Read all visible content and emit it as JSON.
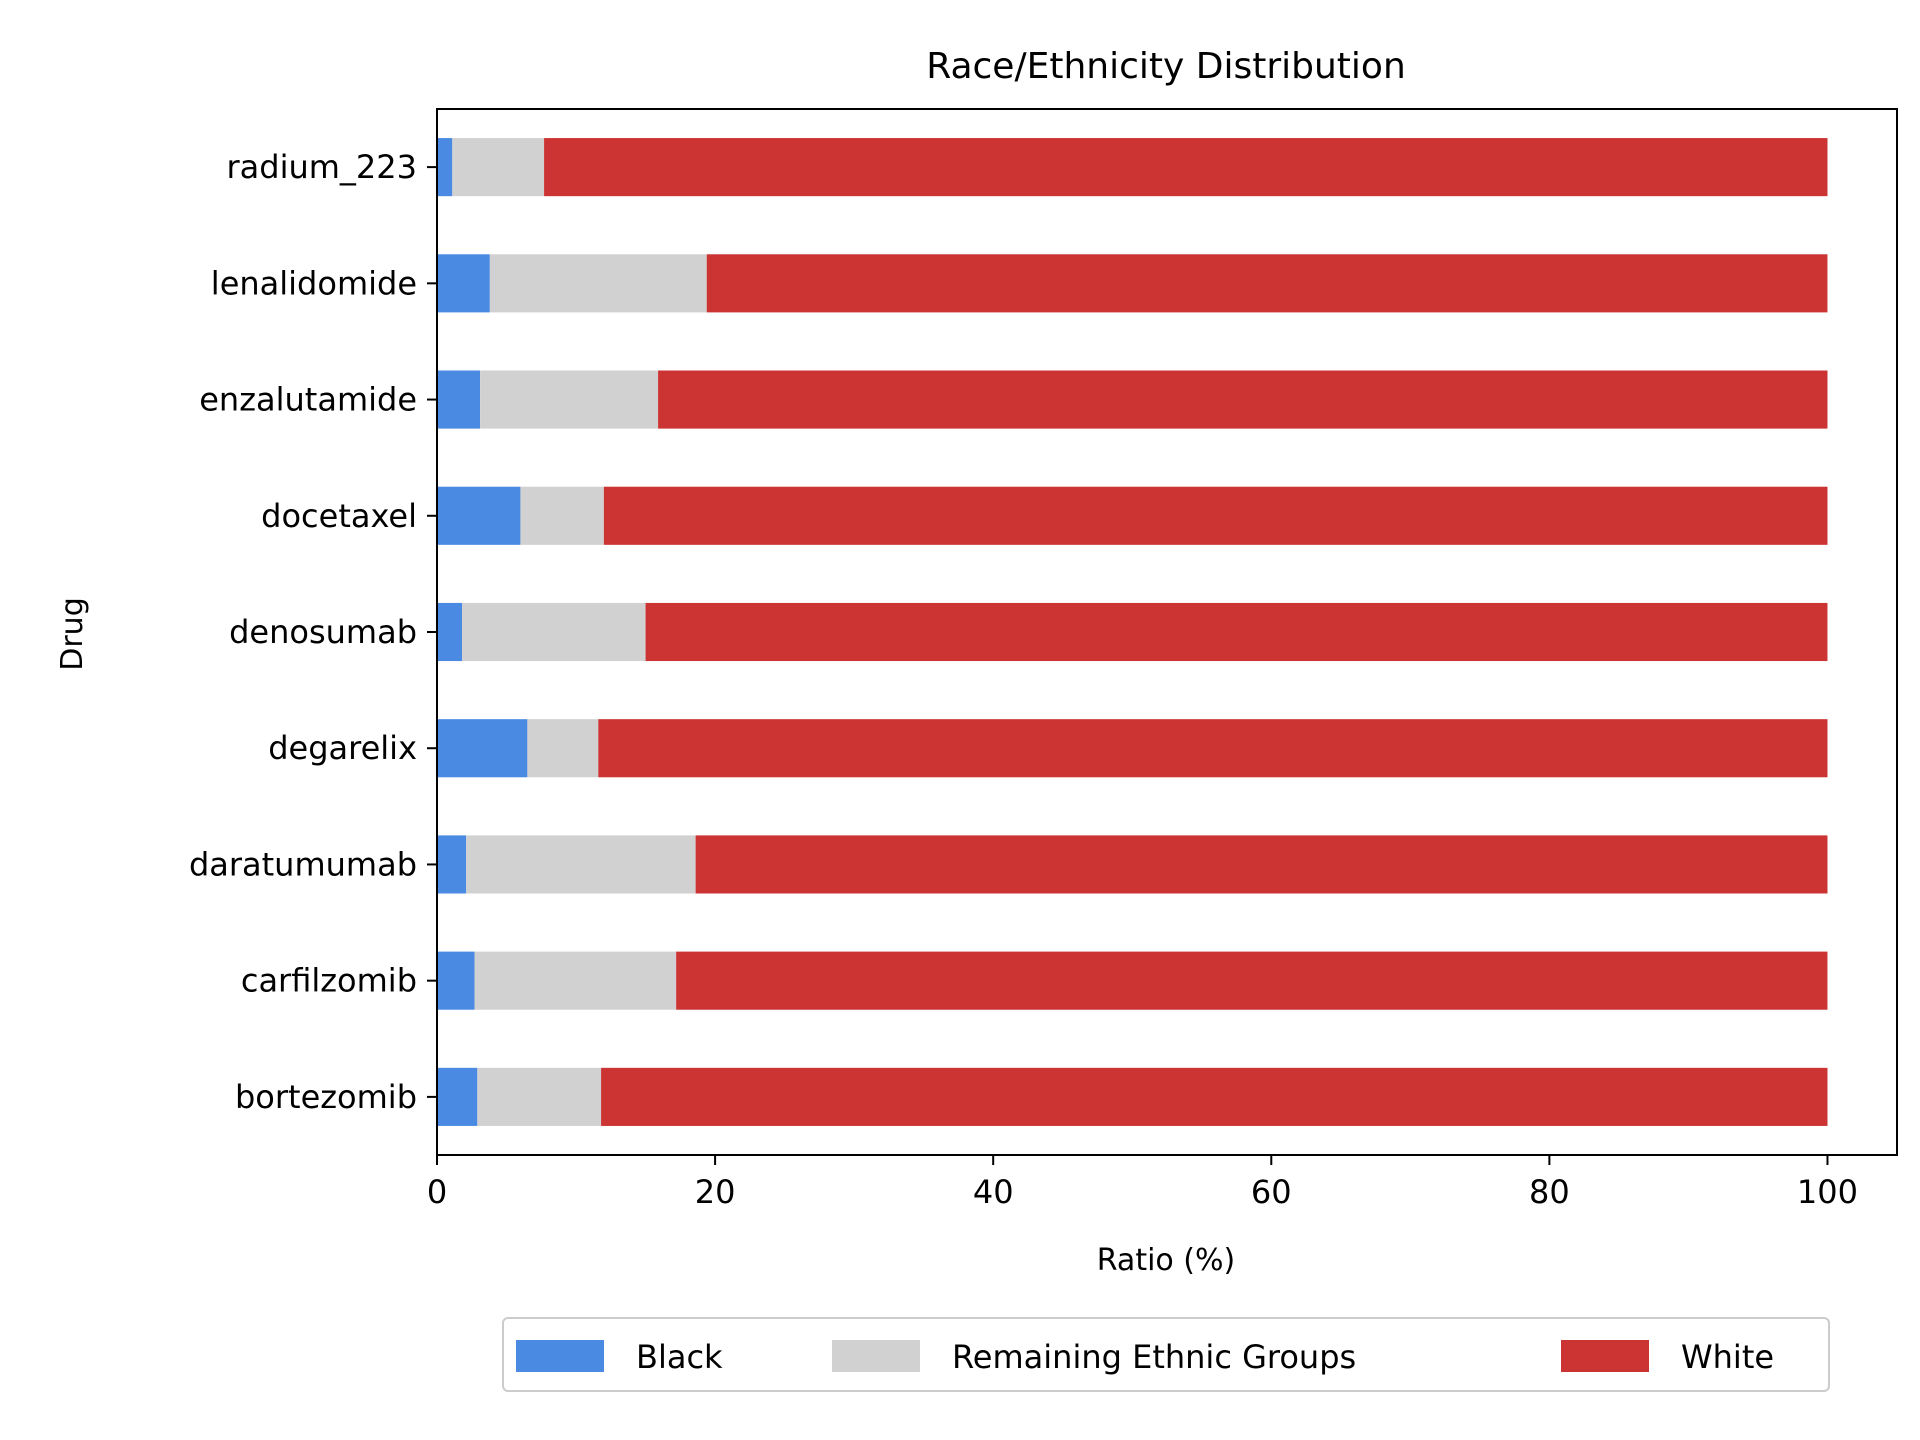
{
  "chart_data": {
    "type": "bar",
    "orientation": "horizontal",
    "stacked": true,
    "title": "Race/Ethnicity Distribution",
    "xlabel": "Ratio (%)",
    "ylabel": "Drug",
    "xlim": [
      0,
      105
    ],
    "xticks": [
      0,
      20,
      40,
      60,
      80,
      100
    ],
    "grid": false,
    "legend_position": "bottom-center",
    "categories": [
      "bortezomib",
      "carfilzomib",
      "daratumumab",
      "degarelix",
      "denosumab",
      "docetaxel",
      "enzalutamide",
      "lenalidomide",
      "radium_223"
    ],
    "series": [
      {
        "name": "Black",
        "color": "#4a8ae3",
        "values": [
          2.9,
          2.7,
          2.1,
          6.5,
          1.8,
          6.0,
          3.1,
          3.8,
          1.1
        ]
      },
      {
        "name": "Remaining Ethnic Groups",
        "color": "#d1d1d1",
        "values": [
          8.9,
          14.5,
          16.5,
          5.1,
          13.2,
          6.0,
          12.8,
          15.6,
          6.6
        ]
      },
      {
        "name": "White",
        "color": "#cc3333",
        "values": [
          88.2,
          82.8,
          81.4,
          88.4,
          85.0,
          88.0,
          84.1,
          80.6,
          92.3
        ]
      }
    ]
  }
}
